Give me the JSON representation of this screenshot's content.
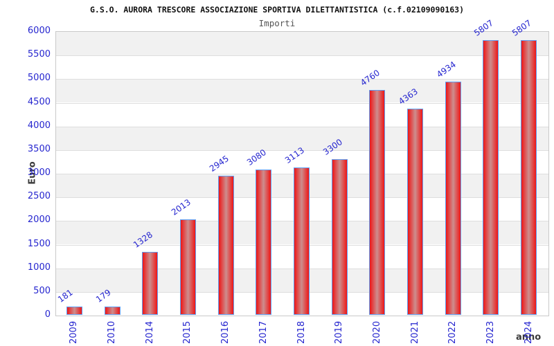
{
  "header": {
    "title": "G.S.O. AURORA TRESCORE ASSOCIAZIONE SPORTIVA DILETTANTISTICA (c.f.02109090163)",
    "subtitle": "Importi"
  },
  "chart_data": {
    "type": "bar",
    "title": "G.S.O. AURORA TRESCORE ASSOCIAZIONE SPORTIVA DILETTANTISTICA (c.f.02109090163)",
    "subtitle": "Importi",
    "categories": [
      "2009",
      "2010",
      "2014",
      "2015",
      "2016",
      "2017",
      "2018",
      "2019",
      "2020",
      "2021",
      "2022",
      "2023",
      "2024"
    ],
    "values": [
      181,
      179,
      1328,
      2013,
      2945,
      3080,
      3113,
      3300,
      4760,
      4363,
      4934,
      5807,
      5807
    ],
    "xlabel": "anno",
    "ylabel": "Euro",
    "ylim": [
      0,
      6000
    ],
    "ytick_step": 500,
    "yticks": [
      0,
      500,
      1000,
      1500,
      2000,
      2500,
      3000,
      3500,
      4000,
      4500,
      5000,
      5500,
      6000
    ],
    "legend": "none",
    "grid": "horizontal-bands-alternating",
    "bar_value_labels_rotated": true,
    "x_labels_rotated_vertical": true,
    "colors": {
      "bar_edge": "#ee1616",
      "bar_center": "#cd8e8e",
      "bar_border": "#5e9ef2",
      "tick_label": "#2525cf",
      "value_label": "#2525cf",
      "band_alt": "#f1f1f1",
      "band_main": "#ffffff",
      "gridline": "#dedede",
      "plot_border": "#c9c9c9",
      "axis_title": "#3a3a3a",
      "title_color": "#111111",
      "subtitle_color": "#555555"
    }
  }
}
